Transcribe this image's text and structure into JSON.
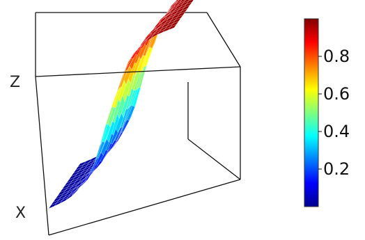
{
  "chart_data": {
    "type": "surface3d",
    "title": "",
    "axis_letters": {
      "z": "Z",
      "x": "X"
    },
    "colormap": "jet",
    "color_range": [
      0.0,
      1.0
    ],
    "colorbar": {
      "ticks": [
        0.2,
        0.4,
        0.6,
        0.8
      ],
      "tick_labels": [
        "0.2",
        "0.4",
        "0.6",
        "0.8"
      ],
      "placement": "right"
    },
    "surface": {
      "description_free_params": true,
      "z_min": 0.0,
      "z_max": 1.0,
      "transition": "sigmoid step along the long axis",
      "grid": {
        "rows": 14,
        "cols": 22
      },
      "low_value": 0.02,
      "high_value": 0.98
    },
    "grid": false,
    "box": true
  }
}
